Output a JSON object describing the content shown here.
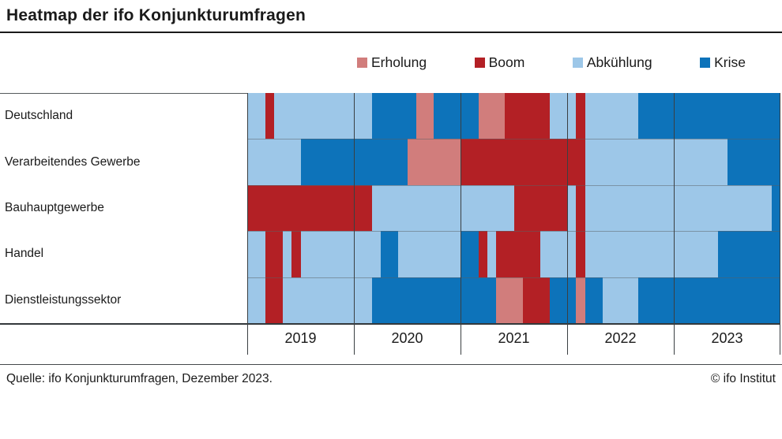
{
  "title": "Heatmap der ifo Konjunkturumfragen",
  "footer": {
    "source": "Quelle: ifo Konjunkturumfragen, Dezember 2023.",
    "copyright": "© ifo Institut"
  },
  "chart_data": {
    "type": "heatmap",
    "title": "Heatmap der ifo Konjunkturumfragen",
    "time_unit": "month",
    "x_range": [
      "2019-01",
      "2023-12"
    ],
    "x_years": [
      "2019",
      "2020",
      "2021",
      "2022",
      "2023"
    ],
    "legend_position": "top-right",
    "grid": "year-separators",
    "legend": [
      {
        "label": "Erholung",
        "code": "E",
        "color": "#d17d7c"
      },
      {
        "label": "Boom",
        "code": "B",
        "color": "#b32025"
      },
      {
        "label": "Abkühlung",
        "code": "A",
        "color": "#9dc7e8"
      },
      {
        "label": "Krise",
        "code": "K",
        "color": "#0d73ba"
      }
    ],
    "rows": [
      {
        "label": "Deutschland",
        "months": "AABAAAAAAAAA AAKKKKKEEKKK KKEEEBBBBBAA ABAAAAAAKKKK KKKKKKKKKKKK"
      },
      {
        "label": "Verarbeitendes Gewerbe",
        "months": "AAAAAAKKKKKK KKKKKKEEEEEE BBBBBBBBBBBB BBAAAAAAAAAA AAAAAAKKKKKK"
      },
      {
        "label": "Bauhauptgewerbe",
        "months": "BBBBBBBBBBBB BBAAAAAAAAAA AAAAAABBBBBB ABAAAAAAAAAA AAAAAAAAAAAK"
      },
      {
        "label": "Handel",
        "months": "AABBABAAAAAA AAAKKAAAAAAA KKBABBBBBAAA ABAAAAAAAAAA AAAAAKKKKKKK"
      },
      {
        "label": "Dienstleistungssektor",
        "months": "AABBAAAAAAAA AAKKKKKKKKKK KKKKEEEBBBKK KEKKAAAAKKKK KKKKKKKKKKKK"
      }
    ]
  }
}
